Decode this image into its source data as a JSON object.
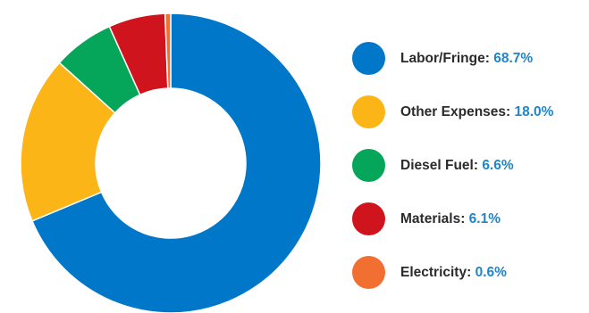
{
  "chart_data": {
    "type": "pie",
    "donut": true,
    "start_angle_deg": 0,
    "direction": "clockwise",
    "legend_position": "right",
    "slices": [
      {
        "label": "Labor/Fringe",
        "value": 68.7,
        "display": "68.7%",
        "color": "#0077c8"
      },
      {
        "label": "Other Expenses",
        "value": 18.0,
        "display": "18.0%",
        "color": "#fbb516"
      },
      {
        "label": "Diesel Fuel",
        "value": 6.6,
        "display": "6.6%",
        "color": "#05a55a"
      },
      {
        "label": "Materials",
        "value": 6.1,
        "display": "6.1%",
        "color": "#d0141e"
      },
      {
        "label": "Electricity",
        "value": 0.6,
        "display": "0.6%",
        "color": "#f26f32"
      }
    ]
  }
}
